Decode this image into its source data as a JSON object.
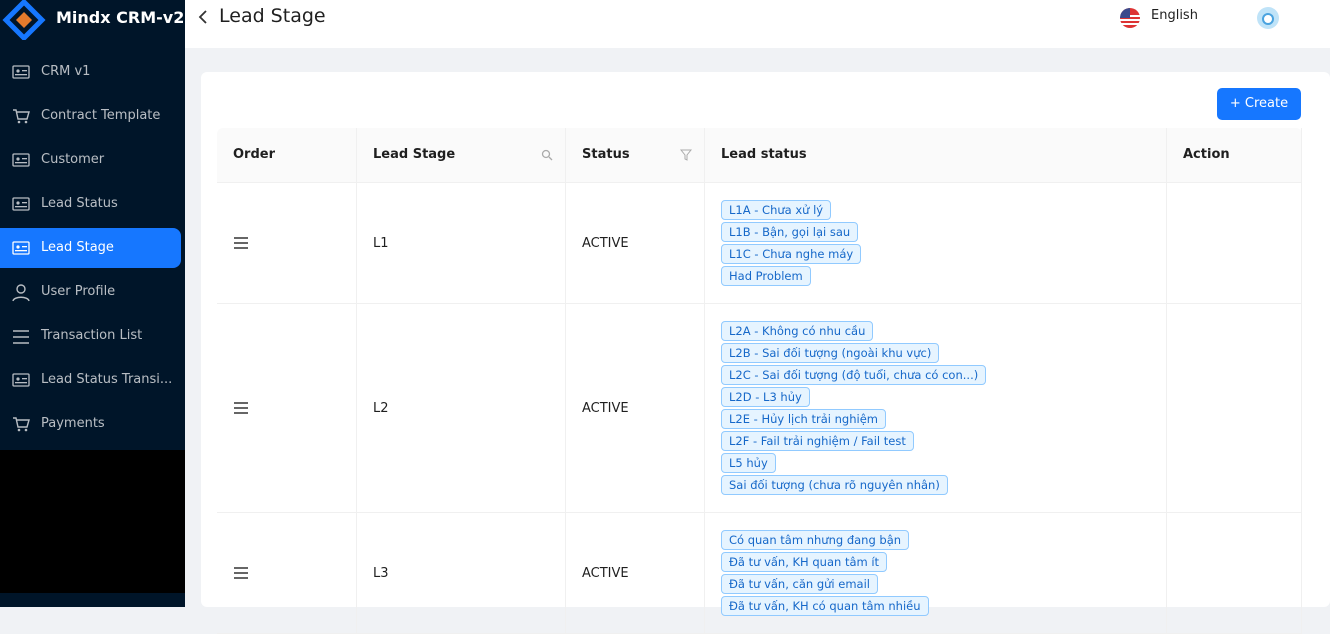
{
  "sidebar": {
    "brand": "Mindx CRM-v2",
    "menu": [
      "CRM v1",
      "Contract Template",
      "Customer",
      "Lead Status",
      "Lead Stage",
      "User Profile",
      "Transaction List",
      "Lead Status Transi...",
      "Payments"
    ],
    "selected": 4
  },
  "header": {
    "title": "Lead Stage",
    "language": "English"
  },
  "toolbar": {
    "create": "+ Create"
  },
  "table": {
    "columns": [
      "Order",
      "Lead Stage",
      "Status",
      "Lead status",
      "Action"
    ],
    "rows": [
      {
        "stage": "L1",
        "status": "ACTIVE",
        "lead_status": [
          "L1A - Chưa xử lý",
          "L1B - Bận, gọi lại sau",
          "L1C - Chưa nghe máy",
          "Had Problem"
        ]
      },
      {
        "stage": "L2",
        "status": "ACTIVE",
        "lead_status": [
          "L2A - Không có nhu cầu",
          "L2B - Sai đối tượng (ngoài khu vực)",
          "L2C - Sai đối tượng (độ tuổi, chưa có con...)",
          "L2D - L3 hủy",
          "L2E - Hủy lịch trải nghiệm",
          "L2F - Fail trải nghiệm / Fail test",
          "L5 hủy",
          "Sai đối tượng (chưa rõ nguyên nhân)"
        ]
      },
      {
        "stage": "L3",
        "status": "ACTIVE",
        "lead_status": [
          "Có quan tâm nhưng đang bận",
          "Đã tư vấn, KH quan tâm ít",
          "Đã tư vấn, căn gửi email",
          "Đã tư vấn, KH có quan tâm nhiều"
        ]
      }
    ]
  }
}
